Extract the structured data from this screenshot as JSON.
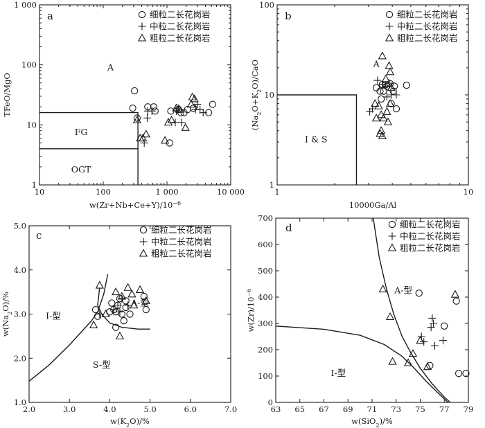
{
  "chart_data": [
    {
      "panel": "a",
      "type": "scatter",
      "xscale": "log",
      "yscale": "log",
      "xlim": [
        10,
        10000
      ],
      "ylim": [
        1,
        1000
      ],
      "xlabel": "w(Zr+Nb+Ce+Y)/10⁻⁶",
      "ylabel": "TFeO/MgO",
      "xticks": [
        10,
        100,
        1000,
        10000
      ],
      "xtick_labels": [
        "10",
        "100",
        "1 000",
        "10 000"
      ],
      "yticks": [
        1,
        10,
        100,
        1000
      ],
      "ytick_labels": [
        "1",
        "10",
        "100",
        "1 000"
      ],
      "boundaries": [
        [
          [
            10,
            16
          ],
          [
            350,
            16
          ],
          [
            350,
            1
          ]
        ],
        [
          [
            10,
            4
          ],
          [
            350,
            4
          ]
        ]
      ],
      "regions": [
        {
          "text": "A",
          "x": 130,
          "y": 90
        },
        {
          "text": "FG",
          "x": 45,
          "y": 7.5
        },
        {
          "text": "OGT",
          "x": 45,
          "y": 1.8
        }
      ],
      "legend": [
        "细粒二长花岗岩",
        "中粒二长花岗岩",
        "粗粒二长花岗岩"
      ],
      "series": [
        {
          "name": "细粒二长花岗岩",
          "marker": "circle",
          "points": [
            [
              310,
              37
            ],
            [
              290,
              19
            ],
            [
              340,
              13
            ],
            [
              500,
              20
            ],
            [
              620,
              20
            ],
            [
              650,
              17
            ],
            [
              1150,
              17
            ],
            [
              1500,
              18
            ],
            [
              1650,
              16
            ],
            [
              1850,
              16
            ],
            [
              2100,
              18
            ],
            [
              2600,
              19
            ],
            [
              4500,
              16
            ],
            [
              5200,
              22
            ],
            [
              1100,
              5
            ]
          ]
        },
        {
          "name": "中粒二长花岗岩",
          "marker": "plus",
          "points": [
            [
              500,
              17
            ],
            [
              580,
              17
            ],
            [
              490,
              13
            ],
            [
              440,
              5
            ],
            [
              1400,
              17
            ],
            [
              1500,
              19
            ],
            [
              1350,
              11
            ],
            [
              1700,
              11
            ],
            [
              2800,
              18
            ],
            [
              3300,
              18
            ],
            [
              3700,
              16
            ],
            [
              3000,
              22
            ]
          ]
        },
        {
          "name": "粗粒二长花岗岩",
          "marker": "triangle",
          "points": [
            [
              340,
              12
            ],
            [
              380,
              6
            ],
            [
              420,
              6
            ],
            [
              470,
              7
            ],
            [
              1050,
              11
            ],
            [
              1180,
              12
            ],
            [
              1400,
              19
            ],
            [
              1950,
              9
            ],
            [
              2400,
              22
            ],
            [
              2700,
              27
            ],
            [
              2500,
              29
            ],
            [
              930,
              5.5
            ],
            [
              1580,
              18
            ]
          ]
        }
      ]
    },
    {
      "panel": "b",
      "type": "scatter",
      "xscale": "log",
      "yscale": "log",
      "xlim": [
        1,
        10
      ],
      "ylim": [
        1,
        100
      ],
      "xlabel": "10000Ga/Al",
      "ylabel": "(Na₂O+K₂O)/CaO",
      "xticks": [
        1,
        10
      ],
      "xtick_labels": [
        "1",
        "10"
      ],
      "yticks": [
        1,
        10,
        100
      ],
      "ytick_labels": [
        "1",
        "10",
        "100"
      ],
      "boundaries": [
        [
          [
            1,
            10
          ],
          [
            2.6,
            10
          ],
          [
            2.6,
            1
          ]
        ]
      ],
      "regions": [
        {
          "text": "A",
          "x": 3.3,
          "y": 22
        },
        {
          "text": "I & S",
          "x": 1.6,
          "y": 3.2
        }
      ],
      "legend": [
        "细粒二长花岗岩",
        "中粒二长花岗岩",
        "粗粒二长花岗岩"
      ],
      "series": [
        {
          "name": "细粒二长花岗岩",
          "marker": "circle",
          "points": [
            [
              3.3,
              12
            ],
            [
              3.55,
              13
            ],
            [
              3.75,
              12.5
            ],
            [
              3.9,
              13.3
            ],
            [
              4.05,
              11
            ],
            [
              3.95,
              8
            ],
            [
              4.2,
              7
            ],
            [
              4.1,
              12.5
            ],
            [
              3.45,
              11
            ],
            [
              3.6,
              11
            ],
            [
              4.75,
              12.8
            ],
            [
              3.7,
              13
            ],
            [
              3.5,
              9
            ]
          ]
        },
        {
          "name": "中粒二长花岗岩",
          "marker": "plus",
          "points": [
            [
              3.35,
              14.5
            ],
            [
              3.55,
              13
            ],
            [
              3.7,
              12.5
            ],
            [
              3.85,
              13.5
            ],
            [
              3.05,
              6.5
            ],
            [
              3.15,
              7
            ],
            [
              4.2,
              10
            ],
            [
              3.95,
              10
            ],
            [
              3.75,
              9.5
            ]
          ]
        },
        {
          "name": "粗粒二长花岗岩",
          "marker": "triangle",
          "points": [
            [
              3.55,
              27
            ],
            [
              3.85,
              21
            ],
            [
              3.9,
              18
            ],
            [
              3.7,
              15
            ],
            [
              3.25,
              8
            ],
            [
              3.4,
              7.5
            ],
            [
              3.5,
              6
            ],
            [
              3.6,
              5.5
            ],
            [
              3.75,
              6.5
            ],
            [
              3.8,
              5
            ],
            [
              3.5,
              4
            ],
            [
              3.45,
              3.7
            ],
            [
              3.55,
              3.5
            ],
            [
              3.9,
              8
            ],
            [
              3.3,
              5.5
            ],
            [
              3.95,
              12
            ]
          ]
        }
      ]
    },
    {
      "panel": "c",
      "type": "scatter",
      "xlim": [
        2.0,
        7.0
      ],
      "ylim": [
        1.0,
        5.0
      ],
      "xlabel": "w(K₂O)/%",
      "ylabel": "w(Na₂O)/%",
      "xticks": [
        2,
        3,
        4,
        5,
        6,
        7
      ],
      "xtick_labels": [
        "2.0",
        "3.0",
        "4.0",
        "5.0",
        "6.0",
        "7.0"
      ],
      "yticks": [
        1,
        2,
        3,
        4,
        5
      ],
      "ytick_labels": [
        "1.0",
        "2.0",
        "3.0",
        "4.0",
        "5.0"
      ],
      "boundaries": [
        [
          [
            2.0,
            1.48
          ],
          [
            2.5,
            1.85
          ],
          [
            3.0,
            2.3
          ],
          [
            3.3,
            2.6
          ],
          [
            3.55,
            2.85
          ],
          [
            3.7,
            3.05
          ],
          [
            3.85,
            3.45
          ],
          [
            3.95,
            3.9
          ]
        ],
        [
          [
            3.75,
            3.6
          ],
          [
            3.7,
            3.2
          ],
          [
            3.8,
            3.0
          ],
          [
            4.0,
            2.8
          ],
          [
            4.3,
            2.7
          ],
          [
            4.7,
            2.66
          ],
          [
            5.0,
            2.66
          ]
        ]
      ],
      "regions": [
        {
          "text": "I-型",
          "x": 2.6,
          "y": 2.95
        },
        {
          "text": "A-型",
          "x": 4.75,
          "y": 3.25
        },
        {
          "text": "S-型",
          "x": 3.8,
          "y": 1.85
        }
      ],
      "legend": [
        "细粒二长花岗岩",
        "中粒二长花岗岩",
        "粗粒二长花岗岩"
      ],
      "series": [
        {
          "name": "细粒二长花岗岩",
          "marker": "circle",
          "points": [
            [
              3.65,
              3.1
            ],
            [
              3.7,
              2.95
            ],
            [
              4.05,
              3.25
            ],
            [
              4.1,
              3.1
            ],
            [
              4.15,
              3.05
            ],
            [
              4.2,
              3.2
            ],
            [
              4.25,
              3.35
            ],
            [
              4.3,
              3.0
            ],
            [
              4.35,
              2.85
            ],
            [
              4.4,
              3.15
            ],
            [
              4.5,
              3.0
            ],
            [
              4.85,
              3.4
            ],
            [
              4.9,
              3.1
            ],
            [
              4.15,
              2.7
            ],
            [
              4.4,
              3.3
            ],
            [
              4.0,
              3.05
            ]
          ]
        },
        {
          "name": "中粒二长花岗岩",
          "marker": "plus",
          "points": [
            [
              3.75,
              3.0
            ],
            [
              4.1,
              3.1
            ],
            [
              4.2,
              3.2
            ],
            [
              4.3,
              3.35
            ],
            [
              4.45,
              3.2
            ],
            [
              4.25,
              3.05
            ]
          ]
        },
        {
          "name": "粗粒二长花岗岩",
          "marker": "triangle",
          "points": [
            [
              3.6,
              2.75
            ],
            [
              3.75,
              3.65
            ],
            [
              3.9,
              3.0
            ],
            [
              4.25,
              2.5
            ],
            [
              4.45,
              3.6
            ],
            [
              4.55,
              3.45
            ],
            [
              4.75,
              3.55
            ],
            [
              4.9,
              3.3
            ],
            [
              4.3,
              3.4
            ],
            [
              4.15,
              3.5
            ],
            [
              4.6,
              3.2
            ]
          ]
        }
      ]
    },
    {
      "panel": "d",
      "type": "scatter",
      "xlim": [
        63,
        79
      ],
      "ylim": [
        0,
        700
      ],
      "xlabel": "w(SiO₂)/%",
      "ylabel": "w(Zr)/10⁻⁶",
      "xticks": [
        63,
        65,
        67,
        69,
        71,
        73,
        75,
        77,
        79
      ],
      "xtick_labels": [
        "63",
        "65",
        "67",
        "69",
        "71",
        "73",
        "75",
        "77",
        "79"
      ],
      "yticks": [
        0,
        100,
        200,
        300,
        400,
        500,
        600,
        700
      ],
      "ytick_labels": [
        "0",
        "100",
        "200",
        "300",
        "400",
        "500",
        "600",
        "700"
      ],
      "boundaries": [
        [
          [
            71.1,
            700
          ],
          [
            71.6,
            550
          ],
          [
            72.2,
            430
          ],
          [
            72.8,
            335
          ],
          [
            73.5,
            250
          ],
          [
            74.2,
            190
          ],
          [
            75.0,
            130
          ],
          [
            76.0,
            70
          ],
          [
            77.0,
            20
          ],
          [
            77.5,
            0
          ]
        ],
        [
          [
            63,
            290
          ],
          [
            67,
            278
          ],
          [
            70,
            255
          ],
          [
            72,
            220
          ],
          [
            73.5,
            175
          ],
          [
            74.5,
            130
          ],
          [
            75.5,
            80
          ],
          [
            76.5,
            35
          ],
          [
            77.3,
            0
          ]
        ]
      ],
      "regions": [
        {
          "text": "A-型",
          "x": 73.6,
          "y": 425
        },
        {
          "text": "I-型",
          "x": 68.2,
          "y": 110
        }
      ],
      "legend": [
        "细粒二长花岗岩",
        "中粒二长花岗岩",
        "粗粒二长花岗岩"
      ],
      "series": [
        {
          "name": "细粒二长花岗岩",
          "marker": "circle",
          "points": [
            [
              74.9,
              415
            ],
            [
              77.0,
              290
            ],
            [
              78.0,
              385
            ],
            [
              78.2,
              110
            ],
            [
              78.8,
              110
            ],
            [
              75.8,
              140
            ]
          ]
        },
        {
          "name": "中粒二长花岗岩",
          "marker": "plus",
          "points": [
            [
              75.1,
              250
            ],
            [
              75.3,
              230
            ],
            [
              75.9,
              285
            ],
            [
              76.0,
              320
            ],
            [
              76.1,
              300
            ],
            [
              76.2,
              215
            ],
            [
              76.9,
              235
            ]
          ]
        },
        {
          "name": "粗粒二长花岗岩",
          "marker": "triangle",
          "points": [
            [
              71.9,
              430
            ],
            [
              72.5,
              325
            ],
            [
              72.7,
              155
            ],
            [
              74.0,
              150
            ],
            [
              74.4,
              185
            ],
            [
              75.0,
              235
            ],
            [
              75.6,
              135
            ],
            [
              77.9,
              410
            ]
          ]
        }
      ]
    }
  ]
}
